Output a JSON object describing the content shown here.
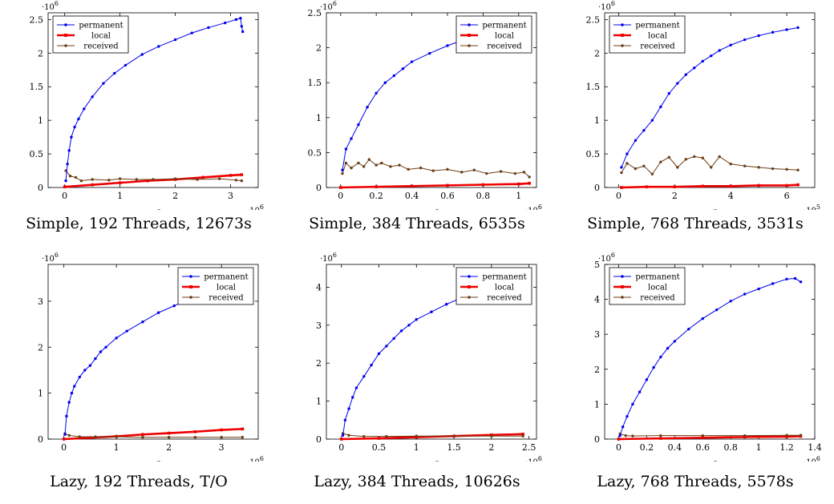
{
  "chart_data": [
    {
      "type": "line",
      "caption": "Simple, 192 Threads, 12673s",
      "xlabel": "# conflicts",
      "x_exponent": "·10^6",
      "y_exponent": "·10^6",
      "xlim": [
        -0.3,
        3.5
      ],
      "ylim": [
        0,
        2.6
      ],
      "xticks": [
        0,
        1,
        2,
        3
      ],
      "xtick_labels": [
        "0",
        "1",
        "2",
        "3"
      ],
      "yticks": [
        0,
        0.5,
        1,
        1.5,
        2,
        2.5
      ],
      "ytick_labels": [
        "0",
        "0.5",
        "1",
        "1.5",
        "2",
        "2.5"
      ],
      "legend_position": "top-left",
      "series": [
        {
          "name": "permanent",
          "color": "#0000ee",
          "x": [
            0.02,
            0.05,
            0.08,
            0.12,
            0.18,
            0.25,
            0.35,
            0.5,
            0.7,
            0.9,
            1.1,
            1.4,
            1.7,
            2.0,
            2.3,
            2.6,
            2.9,
            3.1,
            3.18,
            3.2,
            3.22
          ],
          "y": [
            0.1,
            0.35,
            0.55,
            0.75,
            0.9,
            1.02,
            1.17,
            1.35,
            1.55,
            1.7,
            1.82,
            1.98,
            2.1,
            2.2,
            2.3,
            2.38,
            2.45,
            2.5,
            2.52,
            2.4,
            2.32
          ]
        },
        {
          "name": "local",
          "color": "#ee0000",
          "x": [
            0,
            0.5,
            1,
            1.5,
            2,
            2.5,
            3,
            3.2
          ],
          "y": [
            0.01,
            0.04,
            0.07,
            0.1,
            0.12,
            0.15,
            0.18,
            0.19
          ]
        },
        {
          "name": "received",
          "color": "#6b3e16",
          "x": [
            0.02,
            0.1,
            0.2,
            0.3,
            0.5,
            0.8,
            1.0,
            1.3,
            1.6,
            2.0,
            2.4,
            2.8,
            3.1,
            3.2
          ],
          "y": [
            0.25,
            0.17,
            0.15,
            0.1,
            0.12,
            0.11,
            0.13,
            0.12,
            0.12,
            0.13,
            0.12,
            0.13,
            0.11,
            0.1
          ]
        }
      ]
    },
    {
      "type": "line",
      "caption": "Simple, 384 Threads, 6535s",
      "xlabel": "# conflicts",
      "x_exponent": "·10^6",
      "y_exponent": "·10^6",
      "xlim": [
        -0.08,
        1.1
      ],
      "ylim": [
        0,
        2.5
      ],
      "xticks": [
        0,
        0.2,
        0.4,
        0.6,
        0.8,
        1
      ],
      "xtick_labels": [
        "0",
        "0.2",
        "0.4",
        "0.6",
        "0.8",
        "1"
      ],
      "yticks": [
        0,
        0.5,
        1,
        1.5,
        2,
        2.5
      ],
      "ytick_labels": [
        "0",
        "0.5",
        "1",
        "1.5",
        "2",
        "2.5"
      ],
      "legend_position": "top-right",
      "series": [
        {
          "name": "permanent",
          "color": "#0000ee",
          "x": [
            0.01,
            0.03,
            0.06,
            0.1,
            0.15,
            0.2,
            0.25,
            0.3,
            0.35,
            0.4,
            0.5,
            0.6,
            0.7,
            0.8,
            0.9,
            1.0,
            1.04,
            1.06
          ],
          "y": [
            0.25,
            0.55,
            0.7,
            0.9,
            1.15,
            1.35,
            1.5,
            1.6,
            1.7,
            1.8,
            1.92,
            2.03,
            2.12,
            2.2,
            2.26,
            2.31,
            2.3,
            2.05
          ]
        },
        {
          "name": "local",
          "color": "#ee0000",
          "x": [
            0,
            0.2,
            0.4,
            0.6,
            0.8,
            1.0,
            1.06
          ],
          "y": [
            0.0,
            0.01,
            0.02,
            0.03,
            0.04,
            0.05,
            0.06
          ]
        },
        {
          "name": "received",
          "color": "#6b3e16",
          "x": [
            0.01,
            0.03,
            0.06,
            0.1,
            0.13,
            0.16,
            0.2,
            0.23,
            0.28,
            0.33,
            0.38,
            0.45,
            0.52,
            0.6,
            0.68,
            0.75,
            0.82,
            0.9,
            0.98,
            1.03,
            1.06
          ],
          "y": [
            0.2,
            0.35,
            0.28,
            0.35,
            0.3,
            0.4,
            0.32,
            0.35,
            0.3,
            0.32,
            0.26,
            0.28,
            0.24,
            0.26,
            0.22,
            0.25,
            0.2,
            0.23,
            0.2,
            0.22,
            0.15
          ]
        }
      ]
    },
    {
      "type": "line",
      "caption": "Simple, 768 Threads, 3531s",
      "xlabel": "# conflicts",
      "x_exponent": "·10^5",
      "y_exponent": "·10^6",
      "xlim": [
        -0.5,
        7
      ],
      "ylim": [
        0,
        2.6
      ],
      "xticks": [
        0,
        2,
        4,
        6
      ],
      "xtick_labels": [
        "0",
        "2",
        "4",
        "6"
      ],
      "yticks": [
        0,
        0.5,
        1,
        1.5,
        2,
        2.5
      ],
      "ytick_labels": [
        "0",
        "0.5",
        "1",
        "1.5",
        "2",
        "2.5"
      ],
      "legend_position": "top-left",
      "series": [
        {
          "name": "permanent",
          "color": "#0000ee",
          "x": [
            0.1,
            0.3,
            0.6,
            0.9,
            1.2,
            1.5,
            1.8,
            2.1,
            2.4,
            2.7,
            3.0,
            3.3,
            3.6,
            4.0,
            4.5,
            5.0,
            5.5,
            6.0,
            6.4
          ],
          "y": [
            0.3,
            0.5,
            0.7,
            0.85,
            1.0,
            1.2,
            1.4,
            1.55,
            1.68,
            1.78,
            1.88,
            1.96,
            2.04,
            2.12,
            2.2,
            2.26,
            2.31,
            2.35,
            2.38
          ]
        },
        {
          "name": "local",
          "color": "#ee0000",
          "x": [
            0.1,
            1,
            2,
            3,
            4,
            5,
            6,
            6.4
          ],
          "y": [
            0.0,
            0.01,
            0.01,
            0.02,
            0.02,
            0.03,
            0.03,
            0.04
          ]
        },
        {
          "name": "received",
          "color": "#6b3e16",
          "x": [
            0.1,
            0.3,
            0.6,
            0.9,
            1.2,
            1.5,
            1.8,
            2.1,
            2.4,
            2.7,
            3.0,
            3.3,
            3.6,
            4.0,
            4.5,
            5.0,
            5.5,
            6.0,
            6.4
          ],
          "y": [
            0.22,
            0.36,
            0.28,
            0.32,
            0.2,
            0.38,
            0.45,
            0.3,
            0.42,
            0.46,
            0.44,
            0.3,
            0.46,
            0.35,
            0.32,
            0.3,
            0.28,
            0.27,
            0.26
          ]
        }
      ]
    },
    {
      "type": "line",
      "caption": "Lazy, 192 Threads, T/O",
      "xlabel": "# conflicts",
      "x_exponent": "·10^6",
      "y_exponent": "·10^6",
      "xlim": [
        -0.3,
        3.7
      ],
      "ylim": [
        0,
        3.8
      ],
      "xticks": [
        0,
        1,
        2,
        3
      ],
      "xtick_labels": [
        "0",
        "1",
        "2",
        "3"
      ],
      "yticks": [
        0,
        1,
        2,
        3
      ],
      "ytick_labels": [
        "0",
        "1",
        "2",
        "3"
      ],
      "legend_position": "top-right",
      "series": [
        {
          "name": "permanent",
          "color": "#0000ee",
          "x": [
            0.02,
            0.05,
            0.1,
            0.15,
            0.2,
            0.3,
            0.4,
            0.5,
            0.6,
            0.7,
            0.8,
            1.0,
            1.2,
            1.5,
            1.8,
            2.1,
            2.4,
            2.7,
            3.0,
            3.3,
            3.4
          ],
          "y": [
            0.1,
            0.5,
            0.8,
            1.0,
            1.15,
            1.35,
            1.5,
            1.6,
            1.75,
            1.9,
            2.0,
            2.2,
            2.35,
            2.55,
            2.75,
            2.9,
            3.05,
            3.2,
            3.35,
            3.5,
            3.55
          ]
        },
        {
          "name": "local",
          "color": "#ee0000",
          "x": [
            0,
            0.5,
            1,
            1.5,
            2,
            2.5,
            3,
            3.4
          ],
          "y": [
            0.0,
            0.03,
            0.06,
            0.1,
            0.13,
            0.16,
            0.2,
            0.22
          ]
        },
        {
          "name": "received",
          "color": "#6b3e16",
          "x": [
            0.02,
            0.1,
            0.3,
            0.6,
            1,
            1.5,
            2,
            2.5,
            3,
            3.4
          ],
          "y": [
            0.12,
            0.08,
            0.05,
            0.05,
            0.05,
            0.04,
            0.04,
            0.04,
            0.04,
            0.04
          ]
        }
      ]
    },
    {
      "type": "line",
      "caption": "Lazy, 384 Threads, 10626s",
      "xlabel": "# conflicts",
      "x_exponent": "·10^6",
      "y_exponent": "·10^6",
      "xlim": [
        -0.2,
        2.6
      ],
      "ylim": [
        0,
        4.6
      ],
      "xticks": [
        0,
        0.5,
        1,
        1.5,
        2,
        2.5
      ],
      "xtick_labels": [
        "0",
        "0.5",
        "1",
        "1.5",
        "2",
        "2.5"
      ],
      "yticks": [
        0,
        1,
        2,
        3,
        4
      ],
      "ytick_labels": [
        "0",
        "1",
        "2",
        "3",
        "4"
      ],
      "legend_position": "top-right",
      "series": [
        {
          "name": "permanent",
          "color": "#0000ee",
          "x": [
            0.02,
            0.05,
            0.1,
            0.15,
            0.2,
            0.3,
            0.4,
            0.5,
            0.6,
            0.7,
            0.8,
            0.9,
            1.0,
            1.2,
            1.4,
            1.6,
            1.8,
            2.0,
            2.2,
            2.35,
            2.4,
            2.42
          ],
          "y": [
            0.1,
            0.5,
            0.8,
            1.1,
            1.35,
            1.65,
            1.95,
            2.25,
            2.45,
            2.65,
            2.85,
            3.0,
            3.15,
            3.35,
            3.55,
            3.72,
            3.87,
            4.0,
            4.1,
            4.2,
            4.1,
            3.9
          ]
        },
        {
          "name": "local",
          "color": "#ee0000",
          "x": [
            0,
            0.5,
            1,
            1.5,
            2,
            2.42
          ],
          "y": [
            0.0,
            0.02,
            0.05,
            0.08,
            0.11,
            0.13
          ]
        },
        {
          "name": "received",
          "color": "#6b3e16",
          "x": [
            0.02,
            0.1,
            0.3,
            0.6,
            1,
            1.5,
            2,
            2.42
          ],
          "y": [
            0.15,
            0.1,
            0.07,
            0.07,
            0.08,
            0.08,
            0.08,
            0.08
          ]
        }
      ]
    },
    {
      "type": "line",
      "caption": "Lazy, 768 Threads, 5578s",
      "xlabel": "# conflicts",
      "x_exponent": "·10^6",
      "y_exponent": "·10^6",
      "xlim": [
        -0.1,
        1.4
      ],
      "ylim": [
        0,
        5
      ],
      "xticks": [
        0,
        0.2,
        0.4,
        0.6,
        0.8,
        1,
        1.2,
        1.4
      ],
      "xtick_labels": [
        "0",
        "0.2",
        "0.4",
        "0.6",
        "0.8",
        "1",
        "1.2",
        "1.4"
      ],
      "yticks": [
        0,
        1,
        2,
        3,
        4,
        5
      ],
      "ytick_labels": [
        "0",
        "1",
        "2",
        "3",
        "4",
        "5"
      ],
      "legend_position": "top-left",
      "series": [
        {
          "name": "permanent",
          "color": "#0000ee",
          "x": [
            0.01,
            0.03,
            0.06,
            0.1,
            0.15,
            0.2,
            0.25,
            0.3,
            0.35,
            0.4,
            0.5,
            0.6,
            0.7,
            0.8,
            0.9,
            1.0,
            1.1,
            1.2,
            1.26,
            1.3
          ],
          "y": [
            0.1,
            0.35,
            0.65,
            1.0,
            1.35,
            1.7,
            2.05,
            2.35,
            2.6,
            2.8,
            3.15,
            3.45,
            3.7,
            3.95,
            4.15,
            4.3,
            4.45,
            4.58,
            4.6,
            4.5
          ]
        },
        {
          "name": "local",
          "color": "#ee0000",
          "x": [
            0,
            0.3,
            0.6,
            0.9,
            1.2,
            1.3
          ],
          "y": [
            0.0,
            0.02,
            0.04,
            0.06,
            0.07,
            0.08
          ]
        },
        {
          "name": "received",
          "color": "#6b3e16",
          "x": [
            0.01,
            0.05,
            0.1,
            0.3,
            0.6,
            0.9,
            1.2,
            1.3
          ],
          "y": [
            0.15,
            0.1,
            0.09,
            0.1,
            0.1,
            0.1,
            0.11,
            0.11
          ]
        }
      ]
    }
  ]
}
